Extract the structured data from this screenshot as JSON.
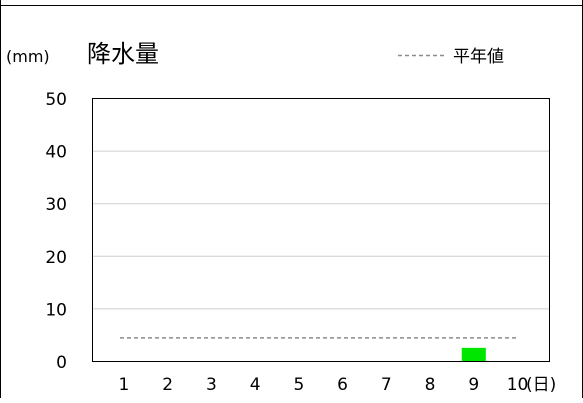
{
  "chart_data": {
    "type": "bar",
    "title": "降水量",
    "unit_label": "(mm)",
    "x": [
      1,
      2,
      3,
      4,
      5,
      6,
      7,
      8,
      9,
      10
    ],
    "x_unit": "(日)",
    "series": [
      {
        "values": [
          0,
          0,
          0,
          0,
          0,
          0,
          0,
          0,
          2.5,
          0
        ],
        "color": "#00e600"
      }
    ],
    "reference_line": {
      "name": "平年値",
      "value": 4.5,
      "style": "dashed",
      "color": "#8c8c8c"
    },
    "ylim": [
      0,
      50
    ],
    "y_ticks": [
      0,
      10,
      20,
      30,
      40,
      50
    ],
    "grid": true,
    "legend_position": "top-right"
  }
}
